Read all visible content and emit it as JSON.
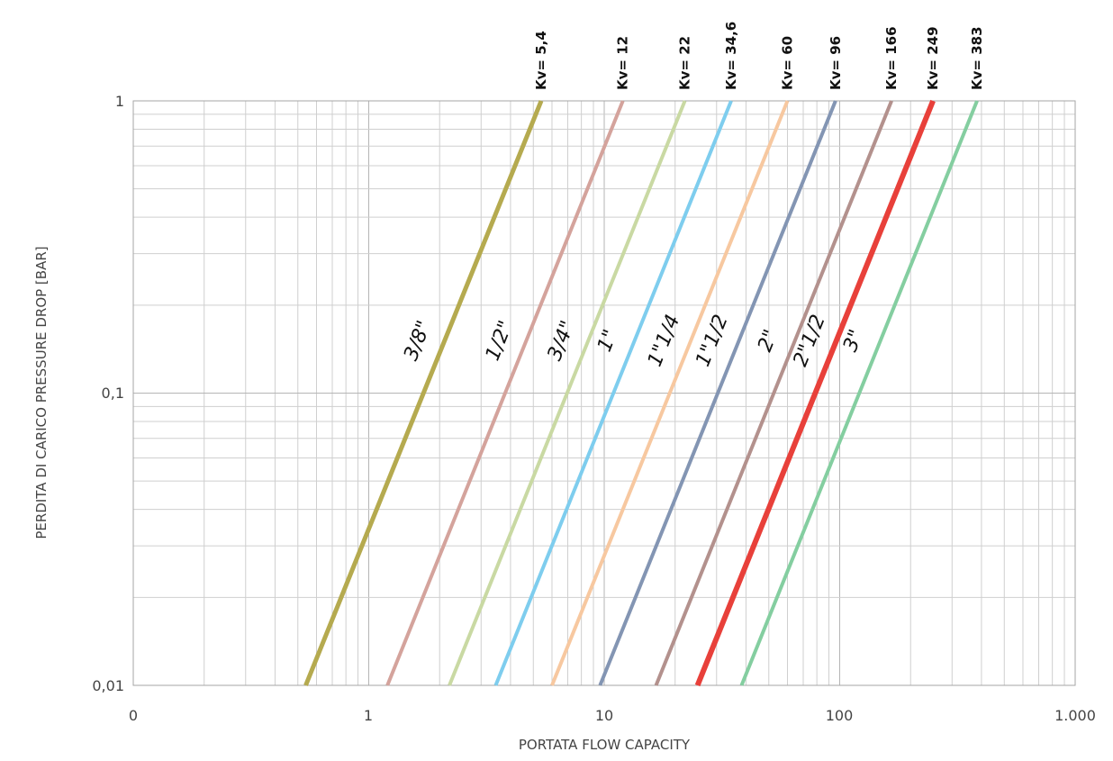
{
  "chart_data": {
    "type": "line",
    "xlabel": "PORTATA FLOW CAPACITY",
    "ylabel": "PERDITA DI CARICO PRESSURE DROP [BAR]",
    "x_scale": "log",
    "y_scale": "log",
    "xlim": [
      0.1,
      1000
    ],
    "ylim": [
      0.01,
      1
    ],
    "x_ticks": [
      "0",
      "1",
      "10",
      "100",
      "1.000"
    ],
    "y_ticks": [
      "1",
      "0,1",
      "0,01"
    ],
    "grid": true,
    "series": [
      {
        "name": "3/8\"",
        "kv_label": "Kv= 5,4",
        "kv": 5.4,
        "color": "#b5aa4f"
      },
      {
        "name": "1/2\"",
        "kv_label": "Kv= 12",
        "kv": 12,
        "color": "#d4a39c"
      },
      {
        "name": "3/4\"",
        "kv_label": "Kv= 22",
        "kv": 22,
        "color": "#c9d9a3"
      },
      {
        "name": "1\"",
        "kv_label": "Kv= 34,6",
        "kv": 34.6,
        "color": "#7ecdee"
      },
      {
        "name": "1\"1/4",
        "kv_label": "Kv= 60",
        "kv": 60,
        "color": "#f7c8a0"
      },
      {
        "name": "1\"1/2",
        "kv_label": "Kv= 96",
        "kv": 96,
        "color": "#8395b3"
      },
      {
        "name": "2\"",
        "kv_label": "Kv= 166",
        "kv": 166,
        "color": "#b3918d"
      },
      {
        "name": "2\"1/2",
        "kv_label": "Kv= 249",
        "kv": 249,
        "color": "#e8403a"
      },
      {
        "name": "3\"",
        "kv_label": "Kv= 383",
        "kv": 383,
        "color": "#84cea0"
      }
    ]
  }
}
